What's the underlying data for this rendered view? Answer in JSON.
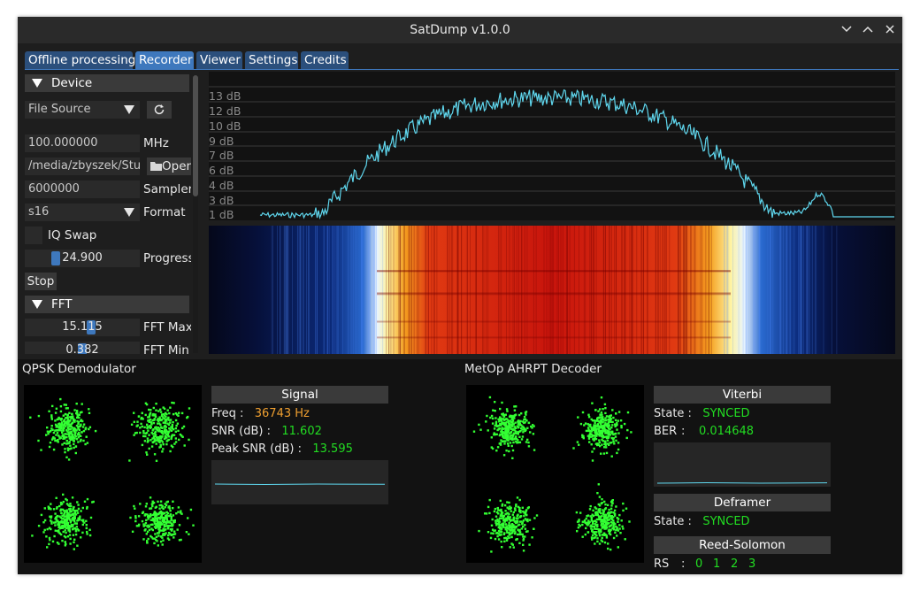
{
  "window": {
    "title": "SatDump v1.0.0",
    "controls": [
      "minimize-icon",
      "maximize-icon",
      "close-icon"
    ]
  },
  "tabs": [
    {
      "label": "Offline processing",
      "active": false
    },
    {
      "label": "Recorder",
      "active": true
    },
    {
      "label": "Viewer",
      "active": false
    },
    {
      "label": "Settings",
      "active": false
    },
    {
      "label": "Credits",
      "active": false
    }
  ],
  "device": {
    "header": "Device",
    "source": "File Source",
    "refresh_icon": "refresh-icon",
    "frequency": "100.000000",
    "frequency_unit": "MHz",
    "file_path": "/media/zbyszek/Stuf",
    "open_label": "Open",
    "samplerate": "6000000",
    "samplerate_label": "Samplerate",
    "format": "s16",
    "format_label": "Format",
    "iq_swap_label": "IQ Swap",
    "iq_swap": false,
    "progress": "24.900",
    "progress_fraction": 0.25,
    "progress_label": "Progress",
    "stop_label": "Stop"
  },
  "fft": {
    "header": "FFT",
    "max": "15.115",
    "max_label": "FFT Max",
    "min": "0.382",
    "min_label": "FFT Min",
    "db_labels": [
      "13 dB",
      "12 dB",
      "10 dB",
      "9 dB",
      "7 dB",
      "6 dB",
      "4 dB",
      "3 dB",
      "1 dB"
    ]
  },
  "colors": {
    "accent": "#3e78bd",
    "tab": "#2b4f7c",
    "spectrum": "#5fd7ee",
    "green": "#22dd22",
    "orange": "#f0a030",
    "constellation": "#33ff33"
  },
  "qpsk": {
    "title": "QPSK Demodulator",
    "signal_header": "Signal",
    "freq_label": "Freq :",
    "freq_value": "36743 Hz",
    "snr_label": "SNR (dB) :",
    "snr_value": "11.602",
    "peak_label": "Peak SNR (dB) :",
    "peak_value": "13.595"
  },
  "metop": {
    "title": "MetOp AHRPT Decoder",
    "viterbi_header": "Viterbi",
    "state_label": "State :",
    "viterbi_state": "SYNCED",
    "ber_label": "BER",
    "ber_sep": ":",
    "ber_value": "0.014648",
    "deframer_header": "Deframer",
    "deframer_state_label": "State :",
    "deframer_state": "SYNCED",
    "rs_header": "Reed-Solomon",
    "rs_label": "RS",
    "rs_sep": ":",
    "rs_values": [
      "0",
      "1",
      "2",
      "3"
    ]
  }
}
